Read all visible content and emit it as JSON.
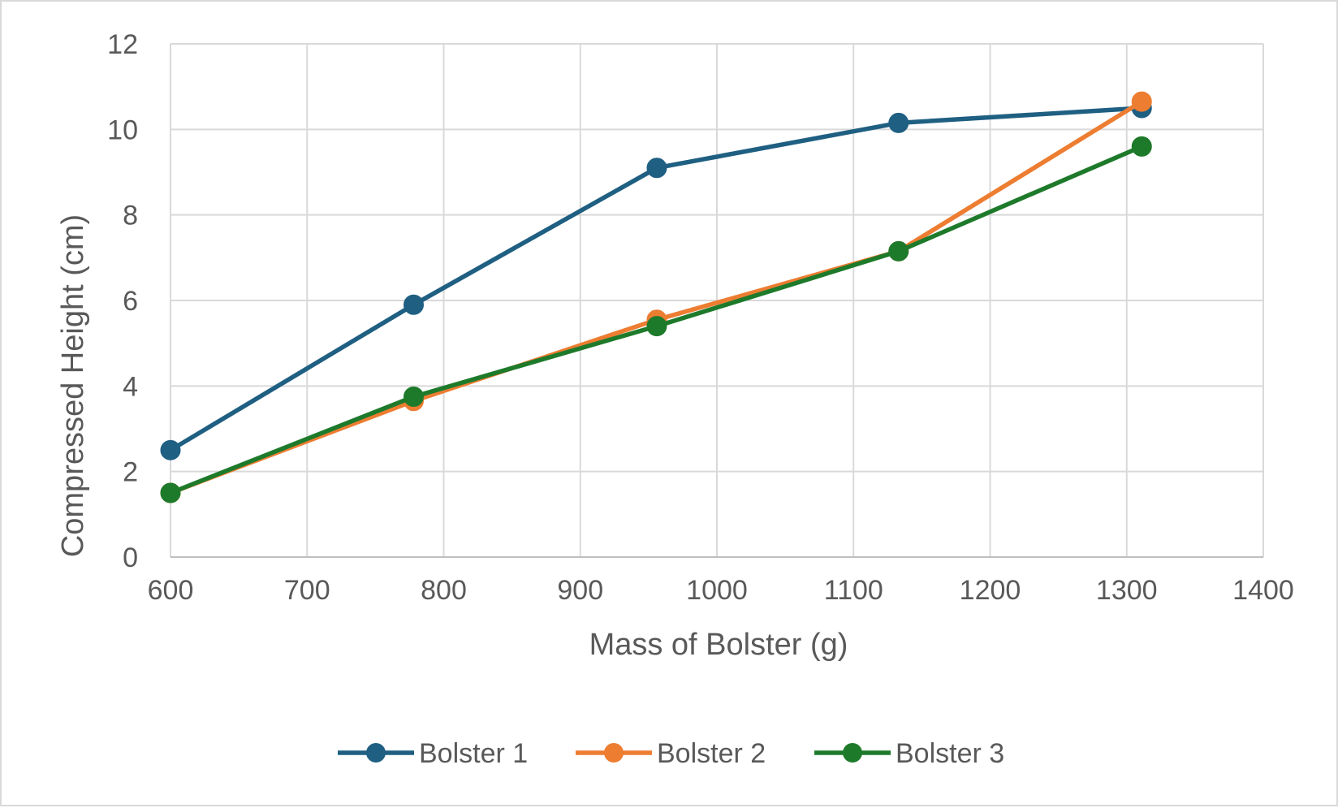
{
  "chart_data": {
    "type": "line",
    "title": "",
    "xlabel": "Mass of Bolster (g)",
    "ylabel": "Compressed Height (cm)",
    "xlim": [
      600,
      1400
    ],
    "ylim": [
      0,
      12
    ],
    "x_ticks": [
      600,
      700,
      800,
      900,
      1000,
      1100,
      1200,
      1300,
      1400
    ],
    "y_ticks": [
      0,
      2,
      4,
      6,
      8,
      10,
      12
    ],
    "grid": true,
    "legend_position": "bottom",
    "markers": true,
    "series": [
      {
        "name": "Bolster 1",
        "color": "#1f5f82",
        "x": [
          600,
          778,
          956,
          1133,
          1311
        ],
        "y": [
          2.5,
          5.9,
          9.1,
          10.15,
          10.5
        ]
      },
      {
        "name": "Bolster 2",
        "color": "#ed7d31",
        "x": [
          600,
          778,
          956,
          1133,
          1311
        ],
        "y": [
          1.5,
          3.65,
          5.55,
          7.15,
          10.65
        ]
      },
      {
        "name": "Bolster 3",
        "color": "#1e7a2b",
        "x": [
          600,
          778,
          956,
          1133,
          1311
        ],
        "y": [
          1.5,
          3.75,
          5.4,
          7.15,
          9.6
        ]
      }
    ]
  }
}
